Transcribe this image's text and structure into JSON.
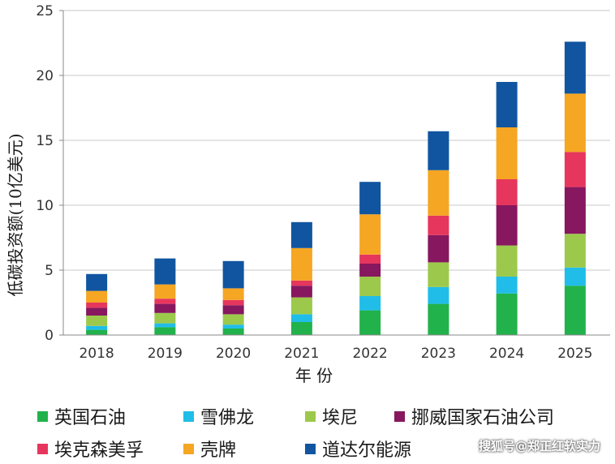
{
  "chart_data": {
    "type": "bar",
    "stacked": true,
    "categories": [
      "2018",
      "2019",
      "2020",
      "2021",
      "2022",
      "2023",
      "2024",
      "2025"
    ],
    "series": [
      {
        "name": "英国石油",
        "color": "#21b24b",
        "values": [
          0.4,
          0.6,
          0.5,
          1.0,
          1.9,
          2.4,
          3.2,
          3.8
        ]
      },
      {
        "name": "雪佛龙",
        "color": "#20bde8",
        "values": [
          0.3,
          0.3,
          0.3,
          0.6,
          1.1,
          1.3,
          1.3,
          1.4
        ]
      },
      {
        "name": "埃尼",
        "color": "#9cc94b",
        "values": [
          0.8,
          0.8,
          0.8,
          1.3,
          1.5,
          1.9,
          2.4,
          2.6
        ]
      },
      {
        "name": "挪威国家石油公司",
        "color": "#87175f",
        "values": [
          0.6,
          0.7,
          0.7,
          0.9,
          1.0,
          2.1,
          3.1,
          3.6
        ]
      },
      {
        "name": "埃克森美孚",
        "color": "#e6365d",
        "values": [
          0.4,
          0.4,
          0.4,
          0.4,
          0.7,
          1.5,
          2.0,
          2.7
        ]
      },
      {
        "name": "壳牌",
        "color": "#f5a623",
        "values": [
          0.9,
          1.1,
          0.9,
          2.5,
          3.1,
          3.5,
          4.0,
          4.5
        ]
      },
      {
        "name": "道达尔能源",
        "color": "#1155a0",
        "values": [
          1.3,
          2.0,
          2.1,
          2.0,
          2.5,
          3.0,
          3.5,
          4.0
        ]
      }
    ],
    "title": "",
    "xlabel": "年 份",
    "ylabel": "低碳投资额(10亿美元)",
    "ylim": [
      0,
      25
    ],
    "yticks": [
      0,
      5,
      10,
      15,
      20,
      25
    ],
    "grid": true,
    "legend_position": "bottom"
  },
  "watermark": "搜狐号@郑正红软实力"
}
